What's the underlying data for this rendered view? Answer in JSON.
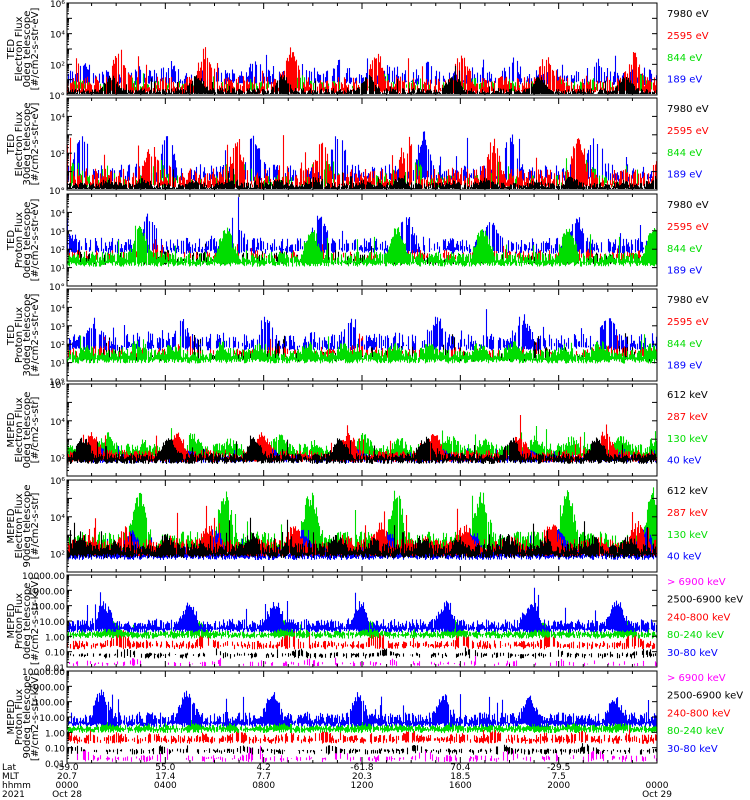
{
  "panels": [
    {
      "instrument": "TED",
      "quantity": "Electron Flux",
      "telescope": "0deg telescope",
      "units": "[#/cm2-s-str-eV]",
      "scale": "log",
      "ylim": [
        1,
        1000000
      ],
      "tick_labels": [
        "10°",
        "10²",
        "10⁴",
        "10⁶"
      ],
      "legend": [
        {
          "label": "7980 eV",
          "color": "#000000"
        },
        {
          "label": "2595 eV",
          "color": "#ff0000"
        },
        {
          "label": "844 eV",
          "color": "#00dd00"
        },
        {
          "label": "189 eV",
          "color": "#0000ff"
        }
      ],
      "series_order": [
        "#0000ff",
        "#00dd00",
        "#ff0000",
        "#000000"
      ],
      "base": [
        0.9,
        0.5,
        0.3,
        0.1
      ],
      "spread": [
        2.2,
        1.2,
        2.6,
        1.0
      ],
      "fill": [
        0.5,
        0.4,
        0.75,
        0.9
      ]
    },
    {
      "instrument": "TED",
      "quantity": "Electron Flux",
      "telescope": "30deg telescope",
      "units": "[#/cm2-s-str-eV]",
      "scale": "log",
      "ylim": [
        1,
        100000
      ],
      "tick_labels": [
        "10°",
        "10²",
        "10⁴"
      ],
      "legend": [
        {
          "label": "7980 eV",
          "color": "#000000"
        },
        {
          "label": "2595 eV",
          "color": "#ff0000"
        },
        {
          "label": "844 eV",
          "color": "#00dd00"
        },
        {
          "label": "189 eV",
          "color": "#0000ff"
        }
      ],
      "series_order": [
        "#0000ff",
        "#00dd00",
        "#ff0000",
        "#000000"
      ],
      "base": [
        0.7,
        0.4,
        0.3,
        0.1
      ],
      "spread": [
        2.0,
        1.2,
        2.5,
        0.9
      ],
      "fill": [
        0.5,
        0.35,
        0.7,
        0.95
      ]
    },
    {
      "instrument": "TED",
      "quantity": "Proton Flux",
      "telescope": "0deg telescope",
      "units": "[#/cm2-s-str-eV]",
      "scale": "log",
      "ylim": [
        1,
        100000
      ],
      "tick_labels": [
        "10°",
        "10¹",
        "10²",
        "10³",
        "10⁴"
      ],
      "legend": [
        {
          "label": "7980 eV",
          "color": "#000000"
        },
        {
          "label": "2595 eV",
          "color": "#ff0000"
        },
        {
          "label": "844 eV",
          "color": "#00dd00"
        },
        {
          "label": "189 eV",
          "color": "#0000ff"
        }
      ],
      "series_order": [
        "#000000",
        "#ff0000",
        "#0000ff",
        "#00dd00"
      ],
      "base": [
        1.4,
        1.6,
        2.0,
        1.3
      ],
      "spread": [
        1.0,
        1.0,
        1.8,
        1.6
      ],
      "fill": [
        0.3,
        0.3,
        0.6,
        0.98
      ]
    },
    {
      "instrument": "TED",
      "quantity": "Proton Flux",
      "telescope": "30deg telescope",
      "units": "[#/cm2-s-str-eV]",
      "scale": "log",
      "ylim": [
        1,
        100000
      ],
      "tick_labels": [
        "10°",
        "10¹",
        "10²",
        "10³",
        "10⁴"
      ],
      "legend": [
        {
          "label": "7980 eV",
          "color": "#000000"
        },
        {
          "label": "2595 eV",
          "color": "#ff0000"
        },
        {
          "label": "844 eV",
          "color": "#00dd00"
        },
        {
          "label": "189 eV",
          "color": "#0000ff"
        }
      ],
      "series_order": [
        "#000000",
        "#ff0000",
        "#0000ff",
        "#00dd00"
      ],
      "base": [
        1.3,
        1.5,
        1.9,
        1.2
      ],
      "spread": [
        1.0,
        1.0,
        1.9,
        1.5
      ],
      "fill": [
        0.3,
        0.3,
        0.6,
        0.98
      ]
    },
    {
      "instrument": "MEPED",
      "quantity": "Electron Flux",
      "telescope": "0deg telescope",
      "units": "[#/cm2-s-str]",
      "scale": "log",
      "ylim": [
        10,
        1000000
      ],
      "tick_labels": [
        "10²",
        "10⁴",
        "10⁶"
      ],
      "legend": [
        {
          "label": "612 keV",
          "color": "#000000"
        },
        {
          "label": "287 keV",
          "color": "#ff0000"
        },
        {
          "label": "130 keV",
          "color": "#00dd00"
        },
        {
          "label": "40 keV",
          "color": "#0000ff"
        }
      ],
      "series_order": [
        "#00dd00",
        "#0000ff",
        "#ff0000",
        "#000000"
      ],
      "base": [
        2.2,
        1.95,
        2.0,
        1.9
      ],
      "spread": [
        1.6,
        0.6,
        1.2,
        1.0
      ],
      "fill": [
        0.95,
        0.98,
        0.95,
        0.98
      ]
    },
    {
      "instrument": "MEPED",
      "quantity": "Electron Flux",
      "telescope": "90deg telescope",
      "units": "[#/cm2-s-str]",
      "scale": "log",
      "ylim": [
        10,
        1000000
      ],
      "tick_labels": [
        "10²",
        "10⁴",
        "10⁶"
      ],
      "legend": [
        {
          "label": "612 keV",
          "color": "#000000"
        },
        {
          "label": "287 keV",
          "color": "#ff0000"
        },
        {
          "label": "130 keV",
          "color": "#00dd00"
        },
        {
          "label": "40 keV",
          "color": "#0000ff"
        }
      ],
      "series_order": [
        "#00dd00",
        "#0000ff",
        "#ff0000",
        "#000000"
      ],
      "base": [
        2.3,
        1.9,
        2.1,
        2.0
      ],
      "spread": [
        2.6,
        1.4,
        2.0,
        1.6
      ],
      "fill": [
        0.95,
        0.98,
        0.95,
        0.98
      ]
    },
    {
      "instrument": "MEPED",
      "quantity": "Proton Flux",
      "telescope": "0deg telescope",
      "units": "[#/cm2-s-str-keV]",
      "scale": "log",
      "ylim": [
        0.01,
        10000
      ],
      "tick_labels": [
        "0.01",
        "0.10",
        "1.00",
        "10.00",
        "100.00",
        "1000.00",
        "10000.00"
      ],
      "legend": [
        {
          "label": "> 6900 keV",
          "color": "#ff00ff"
        },
        {
          "label": "2500-6900 keV",
          "color": "#000000"
        },
        {
          "label": "240-800 keV",
          "color": "#ff0000"
        },
        {
          "label": "80-240 keV",
          "color": "#00dd00"
        },
        {
          "label": "30-80 keV",
          "color": "#0000ff"
        }
      ],
      "series_order": [
        "#ff00ff",
        "#000000",
        "#ff0000",
        "#00dd00",
        "#0000ff"
      ],
      "base": [
        -1.8,
        -1.2,
        -0.6,
        0.1,
        0.5
      ],
      "spread": [
        0.5,
        0.4,
        0.9,
        0.8,
        1.8
      ],
      "fill": [
        0.2,
        0.4,
        0.6,
        0.97,
        0.97
      ]
    },
    {
      "instrument": "MEPED",
      "quantity": "Proton Flux",
      "telescope": "90deg telescope",
      "units": "[#/cm2-s-str-keV]",
      "scale": "log",
      "ylim": [
        0.01,
        10000
      ],
      "tick_labels": [
        "0.01",
        "0.10",
        "1.00",
        "10.00",
        "100.00",
        "1000.00",
        "10000.00"
      ],
      "legend": [
        {
          "label": "> 6900 keV",
          "color": "#ff00ff"
        },
        {
          "label": "2500-6900 keV",
          "color": "#000000"
        },
        {
          "label": "240-800 keV",
          "color": "#ff0000"
        },
        {
          "label": "80-240 keV",
          "color": "#00dd00"
        },
        {
          "label": "30-80 keV",
          "color": "#0000ff"
        }
      ],
      "series_order": [
        "#ff00ff",
        "#000000",
        "#ff0000",
        "#00dd00",
        "#0000ff"
      ],
      "base": [
        -1.7,
        -1.2,
        -0.5,
        0.2,
        0.6
      ],
      "spread": [
        0.6,
        0.4,
        1.0,
        0.9,
        2.0
      ],
      "fill": [
        0.3,
        0.4,
        0.6,
        0.97,
        0.97
      ]
    }
  ],
  "xaxis": {
    "row_labels": [
      "Lat",
      "MLT",
      "hhmm",
      "2021"
    ],
    "ticks": [
      {
        "lat": "-59.0",
        "mlt": "20.7",
        "hhmm": "0000",
        "date": "Oct 28"
      },
      {
        "lat": "55.0",
        "mlt": "17.4",
        "hhmm": "0400",
        "date": ""
      },
      {
        "lat": "4.2",
        "mlt": "7.7",
        "hhmm": "0800",
        "date": ""
      },
      {
        "lat": "-61.8",
        "mlt": "20.3",
        "hhmm": "1200",
        "date": ""
      },
      {
        "lat": "70.4",
        "mlt": "18.5",
        "hhmm": "1600",
        "date": ""
      },
      {
        "lat": "-29.5",
        "mlt": "7.5",
        "hhmm": "2000",
        "date": ""
      },
      {
        "lat": "",
        "mlt": "",
        "hhmm": "0000",
        "date": "Oct 29"
      }
    ]
  }
}
